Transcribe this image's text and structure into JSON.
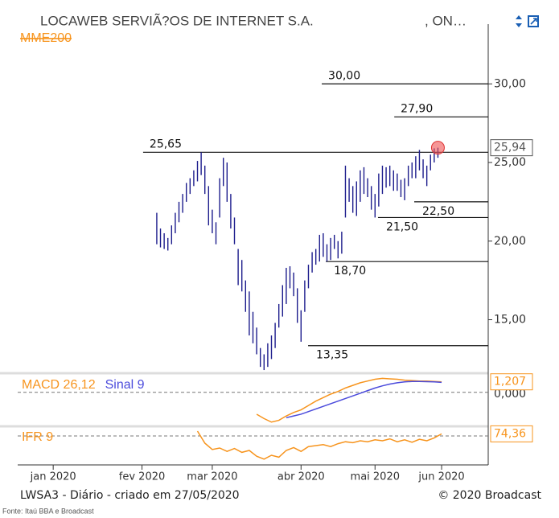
{
  "page": {
    "footer_left": "LWSA3 - Diário - criado em 27/05/2020",
    "footer_right": "© 2020 Broadcast",
    "source": "Fonte: Itaú BBA e Broadcast"
  },
  "chart_data": [
    {
      "type": "ohlc",
      "title": "LOCAWEB SERVIÃ?OS DE INTERNET S.A.",
      "subtitle": ", ON…",
      "legend": [
        {
          "name": "MME200",
          "color": "#f7941d"
        }
      ],
      "color": "#1c1c8c",
      "x": [
        28,
        29,
        30,
        31,
        32,
        33,
        34,
        35,
        36,
        37,
        38,
        39,
        40,
        41,
        42,
        43,
        44,
        45,
        46,
        47,
        48,
        49,
        50,
        51,
        52,
        53,
        54,
        55,
        56,
        57,
        58,
        59,
        60,
        61,
        62,
        63,
        64,
        65,
        66,
        67,
        68,
        69,
        70,
        71,
        72,
        73,
        74,
        75,
        76,
        77,
        78,
        79,
        80,
        81,
        82,
        83,
        84,
        85,
        86,
        87,
        88,
        89,
        90,
        91,
        92,
        93,
        94,
        95,
        96,
        97,
        98,
        99,
        100,
        101,
        102,
        103,
        104
      ],
      "low": [
        19.8,
        19.6,
        19.5,
        19.4,
        19.8,
        20.5,
        21.2,
        21.8,
        22.5,
        23.0,
        23.5,
        23.8,
        24.2,
        23.0,
        21.0,
        20.5,
        19.8,
        21.5,
        23.5,
        22.5,
        20.8,
        19.8,
        17.2,
        16.8,
        15.5,
        14.0,
        13.5,
        12.8,
        12.0,
        11.8,
        12.0,
        12.5,
        13.2,
        14.5,
        15.2,
        16.0,
        17.0,
        16.5,
        14.8,
        13.6,
        15.5,
        17.0,
        18.0,
        18.5,
        18.7,
        19.0,
        18.7,
        18.8,
        19.5,
        18.9,
        19.2,
        21.5,
        22.5,
        21.8,
        21.6,
        22.5,
        23.0,
        22.8,
        22.0,
        21.5,
        22.2,
        23.0,
        23.4,
        23.5,
        23.2,
        23.2,
        22.8,
        22.6,
        23.5,
        24.0,
        24.0,
        24.5,
        24.0,
        23.5,
        24.5,
        25.0,
        25.3
      ],
      "high": [
        21.8,
        20.8,
        20.5,
        20.2,
        21.0,
        21.8,
        22.5,
        23.0,
        23.7,
        24.0,
        24.5,
        25.1,
        25.65,
        24.8,
        23.5,
        22.0,
        21.2,
        24.0,
        25.3,
        25.0,
        23.0,
        21.5,
        19.5,
        18.8,
        17.5,
        16.8,
        15.5,
        14.5,
        13.2,
        12.8,
        13.5,
        14.0,
        14.8,
        16.0,
        17.2,
        18.3,
        18.4,
        18.0,
        17.0,
        15.6,
        17.5,
        18.5,
        19.3,
        19.5,
        20.4,
        20.5,
        19.8,
        20.2,
        20.4,
        20.0,
        20.6,
        24.8,
        24.0,
        23.5,
        23.8,
        24.5,
        24.7,
        24.0,
        23.5,
        23.0,
        24.3,
        24.8,
        24.7,
        24.8,
        24.5,
        24.3,
        23.9,
        24.0,
        24.8,
        25.0,
        25.4,
        25.8,
        25.2,
        24.8,
        25.5,
        25.9,
        25.94
      ],
      "xlim": [
        -9.6,
        117.6
      ],
      "xticks": [
        {
          "value": 0,
          "label": "jan 2020"
        },
        {
          "value": 24,
          "label": "fev 2020"
        },
        {
          "value": 43,
          "label": "mar 2020"
        },
        {
          "value": 67,
          "label": "abr 2020"
        },
        {
          "value": 87,
          "label": "mai 2020"
        },
        {
          "value": 105,
          "label": "jun 2020"
        }
      ],
      "ylim": [
        11.7,
        33.8
      ],
      "yticks": [
        {
          "value": 15,
          "label": "15,00"
        },
        {
          "value": 20,
          "label": "20,00"
        },
        {
          "value": 25,
          "label": "25,00"
        },
        {
          "value": 30,
          "label": "30,00"
        }
      ],
      "levels": [
        {
          "value": 30,
          "label": "30,00",
          "x": 72.6,
          "label_side": "above"
        },
        {
          "value": 27.9,
          "label": "27,90",
          "x": 92.2,
          "label_side": "above"
        },
        {
          "value": 25.65,
          "label": "25,65",
          "x": 24.3,
          "label_side": "above"
        },
        {
          "value": 22.5,
          "label": "22,50",
          "x": 97.6,
          "label_side": "below"
        },
        {
          "value": 21.5,
          "label": "21,50",
          "x": 87.8,
          "label_side": "below"
        },
        {
          "value": 18.7,
          "label": "18,70",
          "x": 73.7,
          "label_side": "below"
        },
        {
          "value": 13.35,
          "label": "13,35",
          "x": 68.9,
          "label_side": "below"
        }
      ],
      "last": {
        "value": 25.94,
        "label": "25,94",
        "color": "#555555"
      }
    },
    {
      "type": "line",
      "series": [
        {
          "name": "MACD 26,12",
          "color": "#f7941d",
          "x": [
            55,
            57,
            59,
            61,
            63,
            65,
            67,
            69,
            71,
            73,
            75,
            77,
            79,
            81,
            83,
            85,
            87,
            89,
            91,
            93,
            95,
            97,
            99,
            101,
            103,
            105
          ],
          "values": [
            -2.5,
            -3.0,
            -3.4,
            -3.2,
            -2.7,
            -2.3,
            -2.0,
            -1.5,
            -1.0,
            -0.6,
            -0.2,
            0.1,
            0.5,
            0.8,
            1.1,
            1.3,
            1.5,
            1.6,
            1.55,
            1.5,
            1.4,
            1.35,
            1.3,
            1.3,
            1.25,
            1.207
          ]
        },
        {
          "name": "Sinal 9",
          "color": "#4b4bdc",
          "x": [
            63,
            65,
            67,
            69,
            71,
            73,
            75,
            77,
            79,
            81,
            83,
            85,
            87,
            89,
            91,
            93,
            95,
            97,
            99,
            101,
            103,
            105
          ],
          "values": [
            -2.9,
            -2.7,
            -2.5,
            -2.2,
            -1.9,
            -1.6,
            -1.3,
            -1.0,
            -0.7,
            -0.4,
            -0.1,
            0.2,
            0.5,
            0.75,
            0.95,
            1.1,
            1.2,
            1.25,
            1.25,
            1.22,
            1.2,
            1.15
          ]
        }
      ],
      "ylim": [
        -3.7,
        2.1
      ],
      "yticks": [
        {
          "value": 0,
          "label": "0,000"
        }
      ],
      "last": {
        "value": 1.207,
        "label": "1,207",
        "color": "#f7941d"
      }
    },
    {
      "type": "line",
      "series": [
        {
          "name": "IFR 9",
          "color": "#f7941d",
          "x": [
            39,
            41,
            43,
            45,
            47,
            49,
            51,
            53,
            55,
            57,
            59,
            61,
            63,
            65,
            67,
            69,
            71,
            73,
            75,
            77,
            79,
            81,
            83,
            85,
            87,
            89,
            91,
            93,
            95,
            97,
            99,
            101,
            103,
            105
          ],
          "values": [
            80,
            55,
            42,
            45,
            38,
            44,
            36,
            40,
            28,
            22,
            30,
            26,
            40,
            46,
            38,
            48,
            50,
            52,
            48,
            54,
            58,
            56,
            60,
            58,
            62,
            60,
            64,
            58,
            62,
            57,
            63,
            60,
            66,
            74.36
          ]
        }
      ],
      "ylim": [
        10,
        90
      ],
      "ref_line": 70,
      "last": {
        "value": 74.36,
        "label": "74,36",
        "color": "#f7941d"
      }
    }
  ]
}
